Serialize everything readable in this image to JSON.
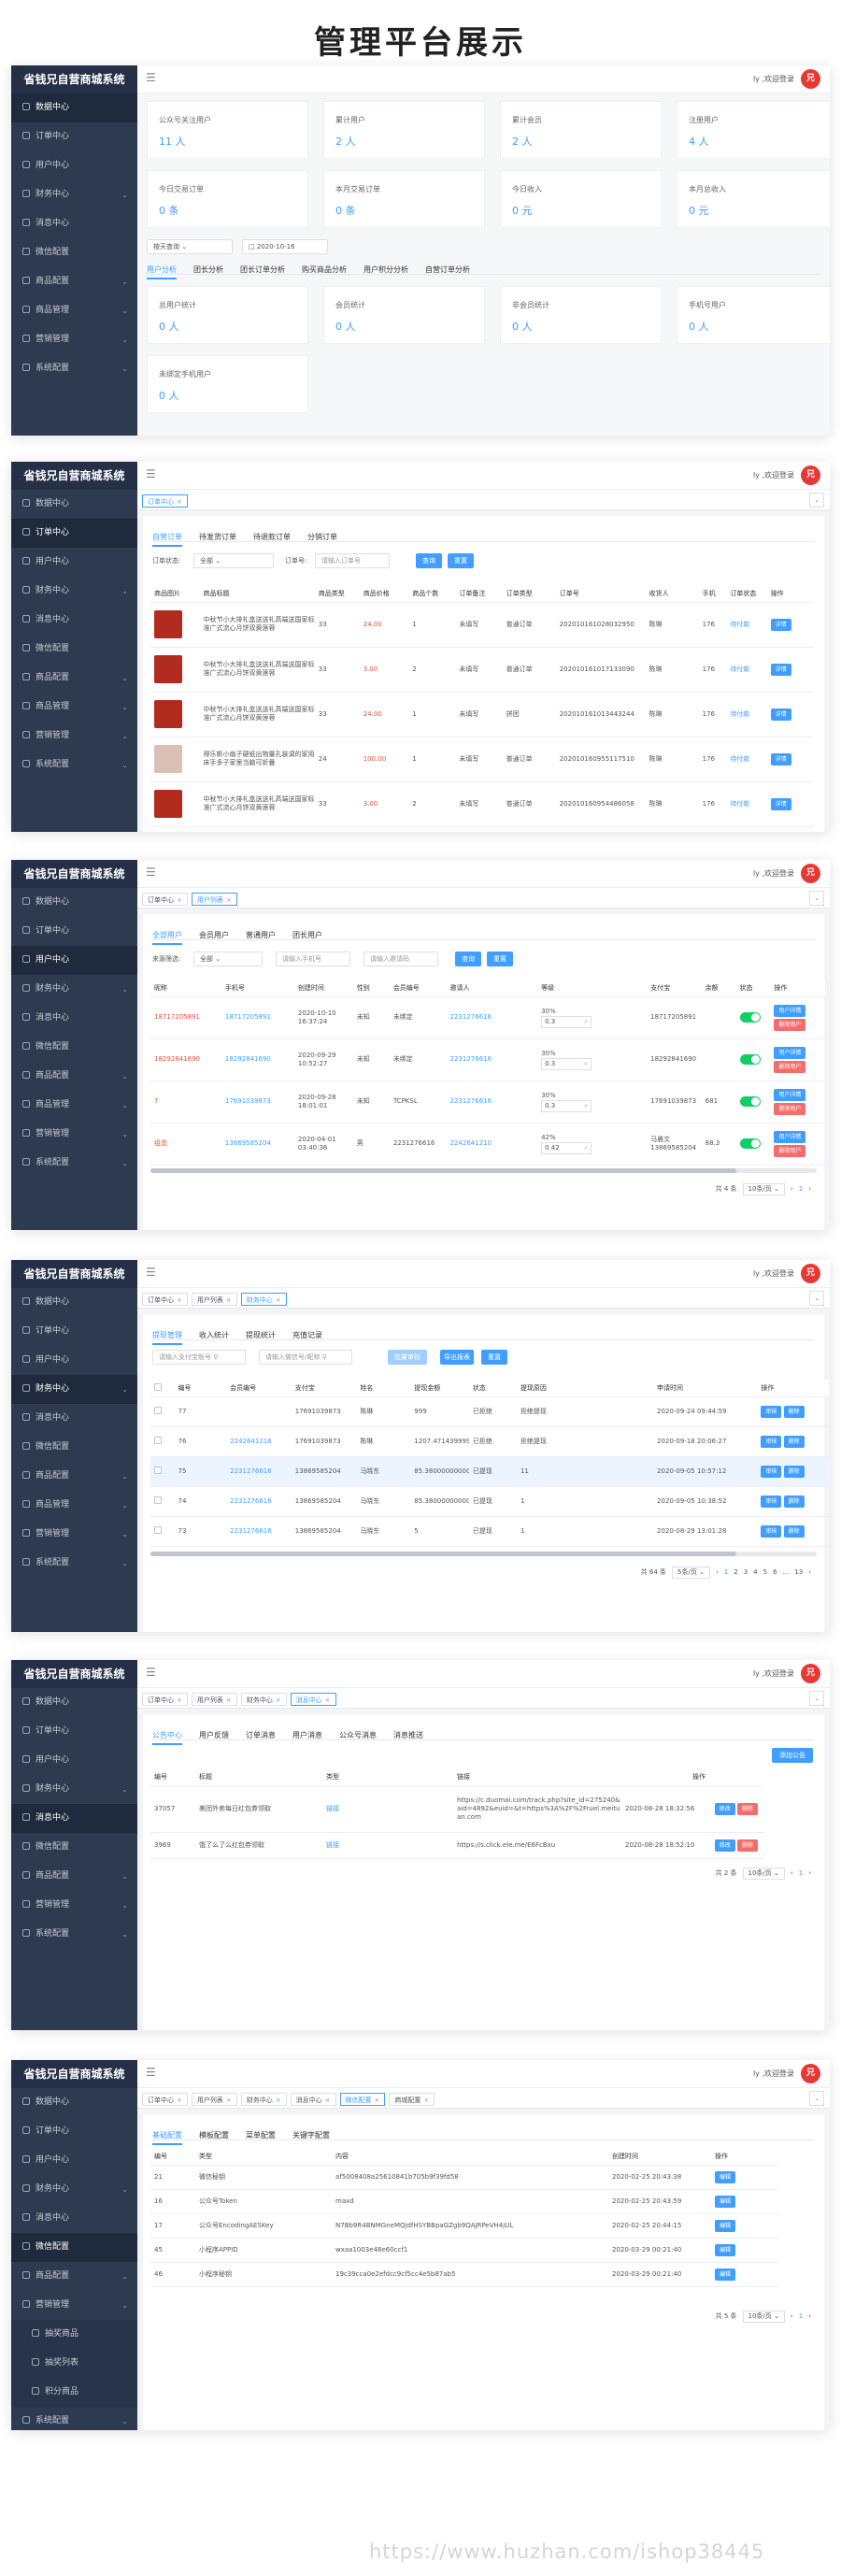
{
  "title": "管理平台展示",
  "brand": "省钱兄自营商城系统",
  "user_name": "ly ,欢迎登录",
  "avatar_text": "兄",
  "menu": [
    "数据中心",
    "订单中心",
    "用户中心",
    "财务中心",
    "消息中心",
    "微信配置",
    "商品配置",
    "商品管理",
    "营销管理",
    "系统配置"
  ],
  "menu_short": [
    "数据中心",
    "订单中心",
    "用户中心",
    "财务中心",
    "消息中心",
    "微信配置",
    "商品配置",
    "营销管理",
    "系统配置"
  ],
  "menu6_sub": [
    "抽奖商品",
    "抽奖列表",
    "积分商品"
  ],
  "s1": {
    "stats_row1": [
      {
        "t": "公众号关注用户",
        "v": "11 人"
      },
      {
        "t": "累计用户",
        "v": "2 人"
      },
      {
        "t": "累计会员",
        "v": "2 人"
      },
      {
        "t": "注册用户",
        "v": "4 人"
      }
    ],
    "stats_row2": [
      {
        "t": "今日交易订单",
        "v": "0 条"
      },
      {
        "t": "本月交易订单",
        "v": "0 条"
      },
      {
        "t": "今日收入",
        "v": "0 元"
      },
      {
        "t": "本月总收入",
        "v": "0 元"
      }
    ],
    "range": "按天查询",
    "date": "2020-10-16",
    "tabs": [
      "用户分析",
      "团长分析",
      "团长订单分析",
      "购买商品分析",
      "用户积分分析",
      "自营订单分析"
    ],
    "stats_row3": [
      {
        "t": "总用户统计",
        "v": "0 人"
      },
      {
        "t": "会员统计",
        "v": "0 人"
      },
      {
        "t": "非会员统计",
        "v": "0 人"
      },
      {
        "t": "手机号用户",
        "v": "0 人"
      }
    ],
    "stats_row4": [
      {
        "t": "未绑定手机用户",
        "v": "0 人"
      }
    ]
  },
  "s2": {
    "tag": "订单中心",
    "tabs": [
      "自营订单",
      "待发货订单",
      "待退款订单",
      "分销订单"
    ],
    "status_label": "订单状态:",
    "status_val": "全部",
    "no_label": "订单号:",
    "no_ph": "请输入订单号",
    "search": "查询",
    "reset": "重置",
    "headers": [
      "商品图片",
      "商品标题",
      "商品类型",
      "商品价格",
      "商品个数",
      "订单备注",
      "订单类型",
      "订单号",
      "收货人",
      "手机",
      "订单状态",
      "操作"
    ],
    "rows": [
      {
        "title": "中秋节小大排礼盒送送礼高端送国家标准广式流心月饼双黄莲蓉",
        "type": "33",
        "price": "24.00",
        "num": "1",
        "remark": "未填写",
        "otype": "普通订单",
        "no": "202010161028032950",
        "name": "陈琳",
        "phone": "176",
        "status": "待付款",
        "op": "详情"
      },
      {
        "title": "中秋节小大排礼盒送送礼高端送国家标准广式流心月饼双黄莲蓉",
        "type": "33",
        "price": "3.00",
        "num": "2",
        "remark": "未填写",
        "otype": "普通订单",
        "no": "202010161017133090",
        "name": "陈琳",
        "phone": "176",
        "status": "待付款",
        "op": "详情"
      },
      {
        "title": "中秋节小大排礼盒送送礼高端送国家标准广式流心月饼双黄莲蓉",
        "type": "33",
        "price": "24.00",
        "num": "1",
        "remark": "未填写",
        "otype": "拼团",
        "no": "202010161013443244",
        "name": "陈琳",
        "phone": "176",
        "status": "待付款",
        "op": "详情"
      },
      {
        "title": "得乐斯小扇子硬纸出物量孔装调的家用床手多子家里当脑可折叠",
        "type": "24",
        "price": "100.00",
        "num": "1",
        "remark": "未填写",
        "otype": "普通订单",
        "no": "202010160955117510",
        "name": "陈琳",
        "phone": "176",
        "status": "待付款",
        "op": "详情"
      },
      {
        "title": "中秋节小大排礼盒送送礼高端送国家标准广式流心月饼双黄莲蓉",
        "type": "33",
        "price": "3.00",
        "num": "2",
        "remark": "未填写",
        "otype": "普通订单",
        "no": "202010160954486058",
        "name": "陈琳",
        "phone": "176",
        "status": "待付款",
        "op": "详情"
      }
    ]
  },
  "s3": {
    "tags": [
      "订单中心",
      "用户列表"
    ],
    "tabs": [
      "全部用户",
      "会员用户",
      "普通用户",
      "团长用户"
    ],
    "filter_label": "来源筛选:",
    "filter_val": "全部",
    "ph1": "请输入手机号",
    "ph2": "请输入邀请码",
    "search": "查询",
    "reset": "重置",
    "headers": [
      "昵称",
      "手机号",
      "创建时间",
      "性别",
      "会员编号",
      "邀请人",
      "等级",
      "",
      "支付宝",
      "余额",
      "状态",
      "操作"
    ],
    "rows": [
      {
        "nick": "18717205891",
        "phone": "18717205891",
        "time": "2020-10-10 16:37:24",
        "sex": "未知",
        "code": "未绑定",
        "inviter": "2231276616",
        "pct": "30%",
        "lvl": "0.3",
        "ali": "18717205891",
        "bal": "",
        "op1": "用户详情",
        "op2": "删除用户"
      },
      {
        "nick": "18292841690",
        "phone": "18292841690",
        "time": "2020-09-29 10:52:27",
        "sex": "未知",
        "code": "未绑定",
        "inviter": "2231276616",
        "pct": "30%",
        "lvl": "0.3",
        "ali": "18292841690",
        "bal": "",
        "op1": "用户详情",
        "op2": "删除用户"
      },
      {
        "nick": "7",
        "phone": "17691039873",
        "time": "2020-09-28 18:01:01",
        "sex": "未知",
        "code": "TCPKSL",
        "inviter": "2231276616",
        "pct": "30%",
        "lvl": "0.3",
        "ali": "17691039873",
        "bal": "681",
        "op1": "用户详情",
        "op2": "删除用户"
      },
      {
        "nick": "组态",
        "phone": "13869585204",
        "time": "2020-04-01 03:40:36",
        "sex": "男",
        "code": "2231276616",
        "inviter": "2242641210",
        "pct": "42%",
        "lvl": "0.42",
        "ali": "马晨文13869585204",
        "bal": "88.3",
        "op1": "用户详情",
        "op2": "删除用户"
      }
    ],
    "pager": {
      "total": "共 4 条",
      "size": "10条/页",
      "page": "1"
    }
  },
  "s4": {
    "tags": [
      "订单中心",
      "用户列表",
      "财务中心"
    ],
    "tabs": [
      "提现管理",
      "收入统计",
      "提现统计",
      "充值记录"
    ],
    "ph1": "请输入支付宝账号",
    "ph2": "请输入微信号/昵称",
    "btn_light": "批量审核",
    "btn_export": "导出报表",
    "btn_reset": "重置",
    "headers": [
      "",
      "编号",
      "会员编号",
      "支付宝",
      "姓名",
      "提现金额",
      "状态",
      "提现原因",
      "",
      "申请时间",
      "操作"
    ],
    "rows": [
      {
        "id": "77",
        "code": "",
        "ali": "17691039873",
        "name": "陈琳",
        "amt": "999",
        "st": "已拒绝",
        "reason": "拒绝提现",
        "time": "2020-09-24 09:44:59"
      },
      {
        "id": "76",
        "code": "2242641216",
        "ali": "17691039873",
        "name": "陈琳",
        "amt": "1207.4714399999991",
        "st": "已拒绝",
        "reason": "拒绝提现",
        "time": "2020-09-18 20:06:27"
      },
      {
        "id": "75",
        "code": "2231276616",
        "ali": "13869585204",
        "name": "马晓东",
        "amt": "85.38000000000001",
        "st": "已提现",
        "reason": "11",
        "time": "2020-09-05 10:57:12"
      },
      {
        "id": "74",
        "code": "2231276616",
        "ali": "13869585204",
        "name": "马晓东",
        "amt": "85.38000000000001",
        "st": "已提现",
        "reason": "1",
        "time": "2020-09-05 10:38:52"
      },
      {
        "id": "73",
        "code": "2231276616",
        "ali": "13869585204",
        "name": "马晓东",
        "amt": "5",
        "st": "已提现",
        "reason": "1",
        "time": "2020-08-29 13:01:28"
      }
    ],
    "op1": "审核",
    "op2": "删除",
    "pager": {
      "total": "共 64 条",
      "size": "5条/页",
      "pages": [
        "1",
        "2",
        "3",
        "4",
        "5",
        "6",
        "...",
        "13"
      ]
    }
  },
  "s5": {
    "tags": [
      "订单中心",
      "用户列表",
      "财务中心",
      "消息中心"
    ],
    "tabs": [
      "公告中心",
      "用户反馈",
      "订单消息",
      "用户消息",
      "公众号消息",
      "消息推送"
    ],
    "add": "添加公告",
    "headers": [
      "编号",
      "标题",
      "类型",
      "链接",
      "",
      "操作"
    ],
    "rows": [
      {
        "id": "37057",
        "title": "美团外卖每日红包券领取",
        "type": "链接",
        "link": "https://c.duomai.com/track.php?site_id=275240&aid=4892&euid=&t=https%3A%2F%2Fruel.meituan.com",
        "time": "2020-08-28 18:32:56"
      },
      {
        "id": "3969",
        "title": "饿了么了么红包券领取",
        "type": "链接",
        "link": "https://s.click.ele.me/E6FcBxu",
        "time": "2020-08-28 18:52:10"
      }
    ],
    "op1": "修改",
    "op2": "删除",
    "pager": {
      "total": "共 2 条",
      "size": "10条/页",
      "page": "1"
    }
  },
  "s6": {
    "tags": [
      "订单中心",
      "用户列表",
      "财务中心",
      "消息中心",
      "微信配置",
      "商城配置"
    ],
    "tabs": [
      "基础配置",
      "模板配置",
      "菜单配置",
      "关键字配置"
    ],
    "headers": [
      "编号",
      "类型",
      "内容",
      "",
      "创建时间",
      "操作"
    ],
    "rows": [
      {
        "id": "21",
        "type": "微信秘钥",
        "content": "af5008408a25610841b705b9f39fd58",
        "time": "2020-02-25 20:43:38"
      },
      {
        "id": "16",
        "type": "公众号Token",
        "content": "maxd",
        "time": "2020-02-25 20:43:59"
      },
      {
        "id": "17",
        "type": "公众号EncodingAESKey",
        "content": "N7Bb9R4BNMGneMQjdfHSYBBpaGZgb9QAJRPeVH4jUL",
        "time": "2020-02-25 20:44:15"
      },
      {
        "id": "45",
        "type": "小程序APPID",
        "content": "wxaa1003e48e60ccf1",
        "time": "2020-03-29 00:21:40"
      },
      {
        "id": "46",
        "type": "小程序秘钥",
        "content": "19c39cca0e2efdcc9cf5cc4e5b87ab5",
        "time": "2020-03-29 00:21:40"
      }
    ],
    "op": "编辑",
    "pager": {
      "total": "共 5 条",
      "size": "10条/页",
      "page": "1"
    }
  },
  "watermark": "https://www.huzhan.com/ishop38445"
}
